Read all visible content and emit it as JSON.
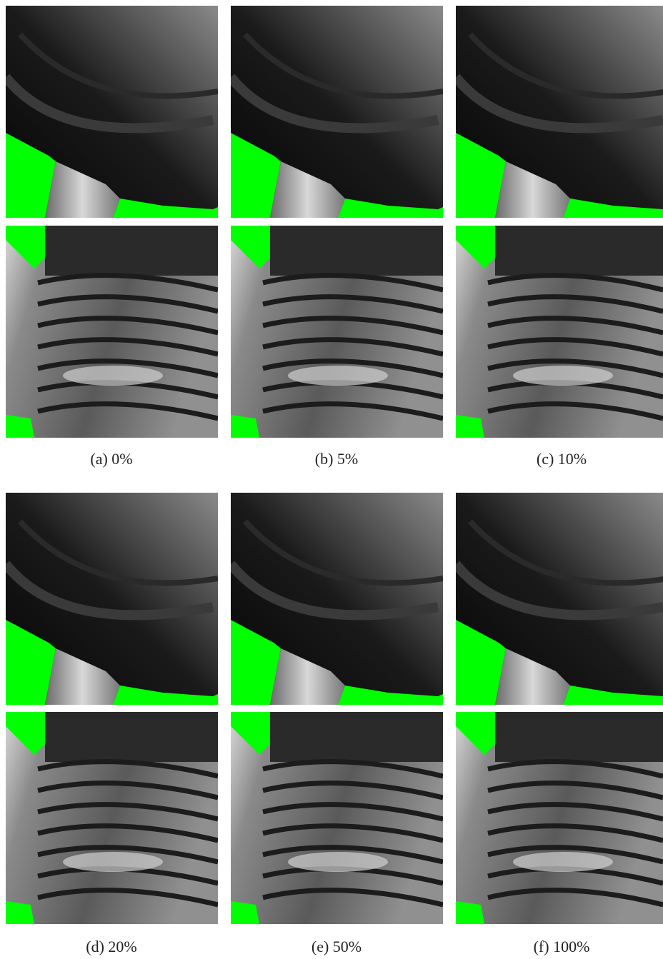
{
  "figure": {
    "panels": [
      {
        "caption": "(a) 0%"
      },
      {
        "caption": "(b) 5%"
      },
      {
        "caption": "(c) 10%"
      },
      {
        "caption": "(d) 20%"
      },
      {
        "caption": "(e) 50%"
      },
      {
        "caption": "(f) 100%"
      }
    ]
  }
}
